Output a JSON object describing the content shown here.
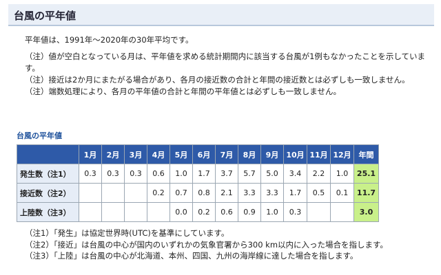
{
  "title": "台風の平年値",
  "lead": "平年値は、1991年～2020年の30年平均です。",
  "notes": [
    "（注）値が空白となっている月は、平年値を求める統計期間内に該当する台風が1例もなかったことを示しています。",
    "（注）接近は2か月にまたがる場合があり、各月の接近数の合計と年間の接近数とは必ずしも一致しません。",
    "（注）端数処理により、各月の平年値の合計と年間の平年値とは必ずしも一致しません。"
  ],
  "table": {
    "caption": "台風の平年値",
    "headers": [
      "1月",
      "2月",
      "3月",
      "4月",
      "5月",
      "6月",
      "7月",
      "8月",
      "9月",
      "10月",
      "11月",
      "12月",
      "年間"
    ],
    "rows": [
      {
        "label": "発生数（注1）",
        "values": [
          "0.3",
          "0.3",
          "0.3",
          "0.6",
          "1.0",
          "1.7",
          "3.7",
          "5.7",
          "5.0",
          "3.4",
          "2.2",
          "1.0",
          "25.1"
        ]
      },
      {
        "label": "接近数（注2）",
        "values": [
          "",
          "",
          "",
          "0.2",
          "0.7",
          "0.8",
          "2.1",
          "3.3",
          "3.3",
          "1.7",
          "0.5",
          "0.1",
          "11.7"
        ]
      },
      {
        "label": "上陸数（注3）",
        "values": [
          "",
          "",
          "",
          "",
          "0.0",
          "0.2",
          "0.6",
          "0.9",
          "1.0",
          "0.3",
          "",
          "",
          "3.0"
        ]
      }
    ]
  },
  "footnotes": [
    "（注1）「発生」は協定世界時(UTC)を基準にしています。",
    "（注2）「接近」は台風の中心が国内のいずれかの気象官署から300 km以内に入った場合を指します。",
    "（注3）「上陸」は台風の中心が北海道、本州、四国、九州の海岸線に達した場合を指します。"
  ],
  "colors": {
    "header_bg": "#2e5aa8",
    "annual_bg": "#c9f08a",
    "row_label_bg": "#e6edf7"
  }
}
